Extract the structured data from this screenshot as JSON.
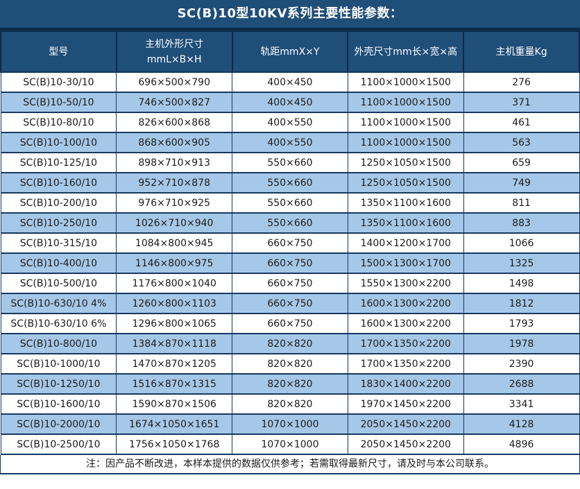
{
  "title": "SC(B)10型10KV系列主要性能参数：",
  "footnote": "注：因产品不断改进，本样本提供的数据仅供参考；若需取得最新尺寸，请及时与本公司联系。",
  "colors": {
    "header_bg": "#1F4E79",
    "header_text": "#FFFFFF",
    "row_bg": "#FFFFFF",
    "row_alt_bg": "#A6C8E8",
    "border": "#17375E",
    "border_dark": "#0E2A4A",
    "body_text": "#1A1A1A"
  },
  "table": {
    "columns": [
      {
        "key": "model",
        "label": "型号",
        "label2": ""
      },
      {
        "key": "dims",
        "label": "主机外形尺寸",
        "label2": "mmL×B×H"
      },
      {
        "key": "gauge",
        "label": "轨距mmX×Y",
        "label2": ""
      },
      {
        "key": "shell",
        "label": "外壳尺寸mm长×宽×高",
        "label2": ""
      },
      {
        "key": "weight",
        "label": "主机重量Kg",
        "label2": ""
      }
    ],
    "rows": [
      {
        "model": "SC(B)10-30/10",
        "dims": "696×500×790",
        "gauge": "400×450",
        "shell": "1100×1000×1500",
        "weight": "276"
      },
      {
        "model": "SC(B)10-50/10",
        "dims": "746×500×827",
        "gauge": "400×450",
        "shell": "1100×1000×1500",
        "weight": "371"
      },
      {
        "model": "SC(B)10-80/10",
        "dims": "826×600×868",
        "gauge": "400×550",
        "shell": "1100×1000×1500",
        "weight": "461"
      },
      {
        "model": "SC(B)10-100/10",
        "dims": "868×600×905",
        "gauge": "400×550",
        "shell": "1100×1000×1500",
        "weight": "563"
      },
      {
        "model": "SC(B)10-125/10",
        "dims": "898×710×913",
        "gauge": "550×660",
        "shell": "1250×1050×1500",
        "weight": "659"
      },
      {
        "model": "SC(B)10-160/10",
        "dims": "952×710×878",
        "gauge": "550×660",
        "shell": "1250×1050×1500",
        "weight": "749"
      },
      {
        "model": "SC(B)10-200/10",
        "dims": "976×710×925",
        "gauge": "550×660",
        "shell": "1350×1100×1600",
        "weight": "811"
      },
      {
        "model": "SC(B)10-250/10",
        "dims": "1026×710×940",
        "gauge": "550×660",
        "shell": "1350×1100×1600",
        "weight": "883"
      },
      {
        "model": "SC(B)10-315/10",
        "dims": "1084×800×945",
        "gauge": "660×750",
        "shell": "1400×1200×1700",
        "weight": "1066"
      },
      {
        "model": "SC(B)10-400/10",
        "dims": "1146×800×975",
        "gauge": "660×750",
        "shell": "1500×1300×1700",
        "weight": "1325"
      },
      {
        "model": "SC(B)10-500/10",
        "dims": "1176×800×1040",
        "gauge": "660×750",
        "shell": "1550×1300×2200",
        "weight": "1498"
      },
      {
        "model": "SC(B)10-630/10 4%",
        "dims": "1260×800×1103",
        "gauge": "660×750",
        "shell": "1600×1300×2200",
        "weight": "1812"
      },
      {
        "model": "SC(B)10-630/10 6%",
        "dims": "1296×800×1065",
        "gauge": "660×750",
        "shell": "1600×1300×2200",
        "weight": "1793"
      },
      {
        "model": "SC(B)10-800/10",
        "dims": "1384×870×1118",
        "gauge": "820×820",
        "shell": "1700×1350×2200",
        "weight": "1978"
      },
      {
        "model": "SC(B)10-1000/10",
        "dims": "1470×870×1205",
        "gauge": "820×820",
        "shell": "1700×1350×2200",
        "weight": "2390"
      },
      {
        "model": "SC(B)10-1250/10",
        "dims": "1516×870×1315",
        "gauge": "820×820",
        "shell": "1830×1400×2200",
        "weight": "2688"
      },
      {
        "model": "SC(B)10-1600/10",
        "dims": "1590×870×1506",
        "gauge": "820×820",
        "shell": "1970×1450×2200",
        "weight": "3341"
      },
      {
        "model": "SC(B)10-2000/10",
        "dims": "1674×1050×1651",
        "gauge": "1070×1000",
        "shell": "2050×1450×2200",
        "weight": "4128"
      },
      {
        "model": "SC(B)10-2500/10",
        "dims": "1756×1050×1768",
        "gauge": "1070×1000",
        "shell": "2050×1450×2200",
        "weight": "4896"
      }
    ]
  }
}
